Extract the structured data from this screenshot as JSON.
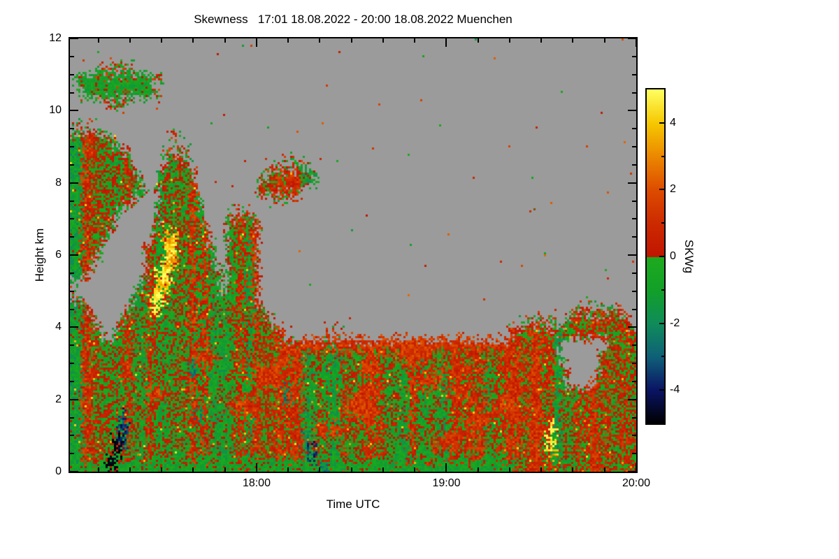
{
  "title": "Skewness   17:01 18.08.2022 - 20:00 18.08.2022 Muenchen",
  "chart_data": {
    "type": "heatmap",
    "title": "Skewness   17:01 18.08.2022 - 20:00 18.08.2022 Muenchen",
    "xlabel": "Time UTC",
    "ylabel": "Height km",
    "x_start_min": 1,
    "x_end_min": 180,
    "x_major_ticks": [
      {
        "min": 60,
        "label": "18:00"
      },
      {
        "min": 120,
        "label": "19:00"
      },
      {
        "min": 180,
        "label": "20:00"
      }
    ],
    "x_minor_step_min": 10,
    "y_km_range": [
      0,
      12
    ],
    "y_major_ticks": [
      {
        "km": 0,
        "label": "0"
      },
      {
        "km": 2,
        "label": "2"
      },
      {
        "km": 4,
        "label": "4"
      },
      {
        "km": 6,
        "label": "6"
      },
      {
        "km": 8,
        "label": "8"
      },
      {
        "km": 10,
        "label": "10"
      },
      {
        "km": 12,
        "label": "12"
      }
    ],
    "y_minor_step_km": 0.5,
    "colorbar": {
      "label": "SKWg",
      "range": [
        -5,
        5
      ],
      "ticks": [
        {
          "v": 4,
          "label": "4"
        },
        {
          "v": 2,
          "label": "2"
        },
        {
          "v": 0,
          "label": "0"
        },
        {
          "v": -2,
          "label": "-2"
        },
        {
          "v": -4,
          "label": "-4"
        }
      ],
      "minor_step": 1
    },
    "no_data_color": "#9b9b9b",
    "palette_stops": [
      [
        -5,
        "#000000"
      ],
      [
        -4,
        "#0a1464"
      ],
      [
        -3,
        "#0f6078"
      ],
      [
        -2,
        "#0f8c5a"
      ],
      [
        -1,
        "#12a028"
      ],
      [
        -0.02,
        "#1eaa1e"
      ],
      [
        0,
        "#c01500"
      ],
      [
        1,
        "#cc2a00"
      ],
      [
        2,
        "#dd4c00"
      ],
      [
        3,
        "#eb8800"
      ],
      [
        4,
        "#f6c800"
      ],
      [
        5,
        "#ffff60"
      ]
    ],
    "value_map": {
      "g": -0.7,
      "m": 0,
      "t": -2.2,
      "b": -3.5,
      "k": -4.8,
      "r": 1.3,
      "R": 2.6,
      "o": 3.6,
      "y": 4.7,
      "s": "sparse"
    },
    "noise_amp": {
      "g": 0.8,
      "m": 1.1,
      "t": 0.9,
      "b": 0.8,
      "k": 0.3,
      "r": 1.0,
      "R": 0.9,
      "o": 0.7,
      "y": 0.4
    },
    "grid_cols": 90,
    "grid_rows": 36,
    "grid_encoding": "run-length: <count><char>, '.'=no-data, rows top(12km) to bottom(0km), cols 17:01 to 20:00",
    "grid": [
      "90.",
      "90.",
      "4.6s80.",
      "1.12g2s75.",
      "2.11g1s76.",
      "6.3s81.",
      "90.",
      "4s86.",
      "7m9.2s72.",
      "9m6.4s71.",
      "10m5.4m13.6s52.",
      "11m3.6m11.8m51.",
      "12m2.6m10.7m53.",
      "10m4.7m11.3s55.",
      "8m6.7m4.4s61.",
      "7m6.9m3.5m60.",
      "6m7.2m2o5m3.5m60.",
      "5m7.3m2y6m2.5m60.",
      "4m8.3m2o6m2.5m60.",
      "3m9.2m2y8m1.5m60.",
      "11.3m2o8m1.5m60.",
      "2s8.3m2y15m60.",
      "3m6.4m1y17m49.8s2.",
      "4m4.24m40.5s2.10m1.",
      "5m2.27m6.3s27.20m",
      "37m33r8m7.5m",
      "20m3r10m4r15m5r21m6.6m",
      "8m2r9m1t10m4r12m3r10m4r16m5.6m",
      "30m4r20m5r20m4.7m",
      "12m3r19m1t10m4r12m3r26m",
      "25m4r15m3r20m4r19m",
      "8m1b11m1t24m4r15m3r23m",
      "8m1b30m4r20m3r10m1y13m",
      "7m1k1b28m1t20m3r15m1y13m",
      "7m1k30m1b37m1o13m",
      "6g1k33g1t30g19m"
    ]
  }
}
